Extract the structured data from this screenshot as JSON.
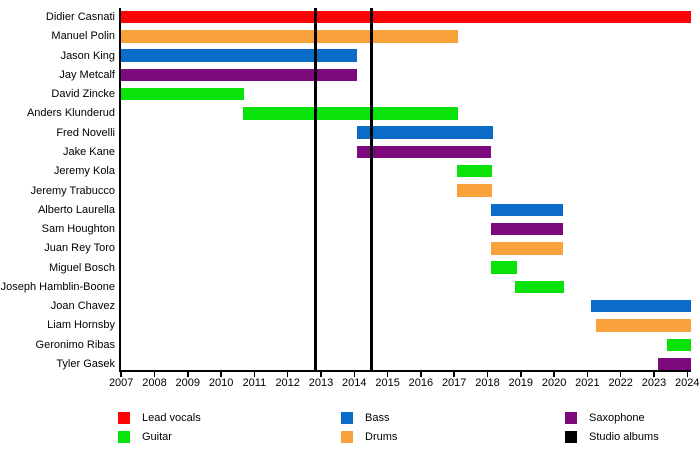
{
  "chart_data": {
    "type": "bar",
    "subtype": "gantt-band-member-timeline",
    "title": "",
    "xlabel": "",
    "ylabel": "",
    "grid": false,
    "legend_position": "bottom",
    "x_axis": {
      "min": 2007,
      "max": 2024.12,
      "ticks": [
        2007,
        2008,
        2009,
        2010,
        2011,
        2012,
        2013,
        2014,
        2015,
        2016,
        2017,
        2018,
        2019,
        2020,
        2021,
        2022,
        2023,
        2024
      ]
    },
    "roles": {
      "lead_vocals": {
        "label": "Lead vocals",
        "color": "#f90505"
      },
      "guitar": {
        "label": "Guitar",
        "color": "#0ae30a"
      },
      "bass": {
        "label": "Bass",
        "color": "#0b6bc8"
      },
      "drums": {
        "label": "Drums",
        "color": "#f9a23b"
      },
      "saxophone": {
        "label": "Saxophone",
        "color": "#7c0a7c"
      },
      "studio_albums": {
        "label": "Studio albums",
        "color": "#000000"
      }
    },
    "legend_order": [
      "lead_vocals",
      "guitar",
      "bass",
      "drums",
      "saxophone",
      "studio_albums"
    ],
    "members": [
      {
        "name": "Didier Casnati",
        "role": "lead_vocals",
        "start": 2007.0,
        "end": 2024.12
      },
      {
        "name": "Manuel Polin",
        "role": "drums",
        "start": 2007.0,
        "end": 2017.1
      },
      {
        "name": "Jason King",
        "role": "bass",
        "start": 2007.0,
        "end": 2014.07
      },
      {
        "name": "Jay Metcalf",
        "role": "saxophone",
        "start": 2007.0,
        "end": 2014.07
      },
      {
        "name": "David Zincke",
        "role": "guitar",
        "start": 2007.0,
        "end": 2010.69
      },
      {
        "name": "Anders Klunderud",
        "role": "guitar",
        "start": 2010.66,
        "end": 2017.1
      },
      {
        "name": "Fred Novelli",
        "role": "bass",
        "start": 2014.07,
        "end": 2018.16
      },
      {
        "name": "Jake Kane",
        "role": "saxophone",
        "start": 2014.07,
        "end": 2018.11
      },
      {
        "name": "Jeremy Kola",
        "role": "guitar",
        "start": 2017.08,
        "end": 2018.14
      },
      {
        "name": "Jeremy Trabucco",
        "role": "drums",
        "start": 2017.08,
        "end": 2018.14
      },
      {
        "name": "Alberto Laurella",
        "role": "bass",
        "start": 2018.11,
        "end": 2020.27
      },
      {
        "name": "Sam Houghton",
        "role": "saxophone",
        "start": 2018.11,
        "end": 2020.27
      },
      {
        "name": "Juan Rey Toro",
        "role": "drums",
        "start": 2018.11,
        "end": 2020.27
      },
      {
        "name": "Miguel Bosch",
        "role": "guitar",
        "start": 2018.11,
        "end": 2018.9
      },
      {
        "name": "Joseph Hamblin-Boone",
        "role": "guitar",
        "start": 2018.83,
        "end": 2020.29
      },
      {
        "name": "Joan Chavez",
        "role": "bass",
        "start": 2021.11,
        "end": 2024.12
      },
      {
        "name": "Liam Hornsby",
        "role": "drums",
        "start": 2021.26,
        "end": 2024.12
      },
      {
        "name": "Geronimo Ribas",
        "role": "guitar",
        "start": 2023.38,
        "end": 2024.12
      },
      {
        "name": "Tyler Gasek",
        "role": "saxophone",
        "start": 2023.13,
        "end": 2024.12
      }
    ],
    "album_lines": {
      "role": "studio_albums",
      "years": [
        2012.83,
        2014.52
      ]
    }
  }
}
